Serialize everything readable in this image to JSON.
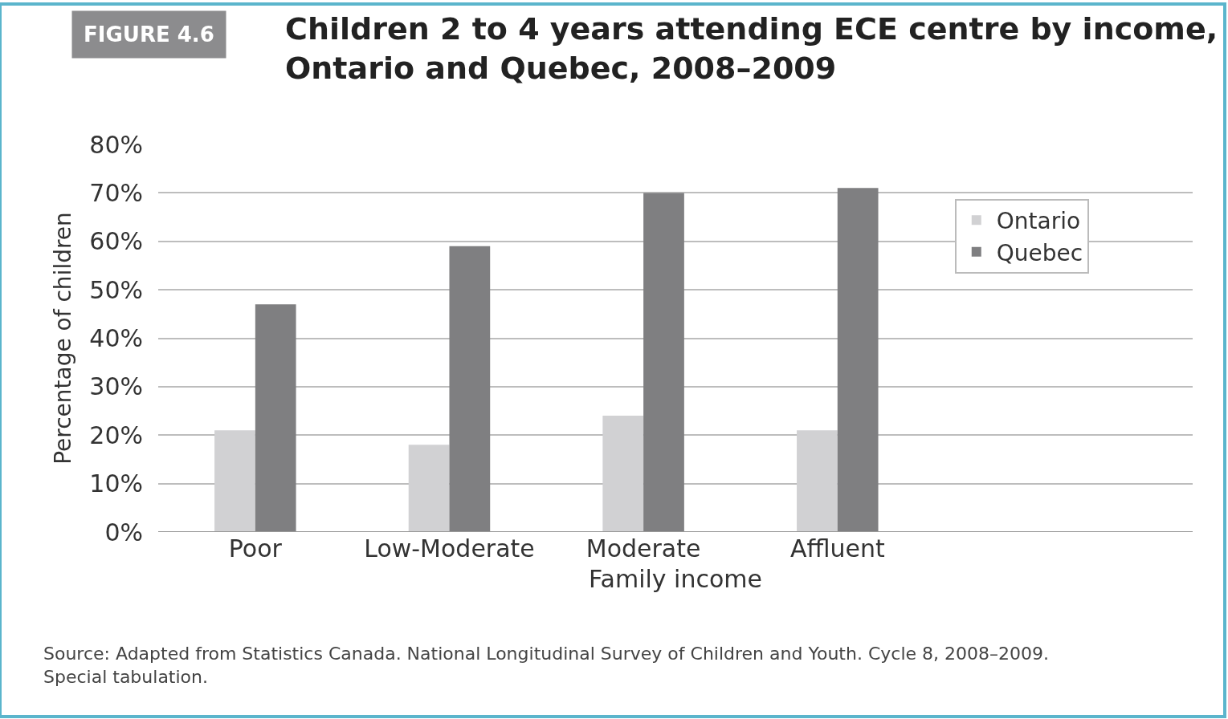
{
  "chart_data": {
    "type": "bar",
    "title": "Children 2 to 4 years attending ECE centre by income,\nOntario and Quebec, 2008–2009",
    "subtitle": "FIGURE 4.6",
    "categories": [
      "Poor",
      "Low-Moderate",
      "Moderate",
      "Affluent"
    ],
    "series": [
      {
        "name": "Ontario",
        "color": "#d1d1d3",
        "values": [
          21,
          18,
          24,
          21
        ]
      },
      {
        "name": "Quebec",
        "color": "#7f7f81",
        "values": [
          47,
          59,
          70,
          71
        ]
      }
    ],
    "xlabel": "Family income",
    "ylabel": "Percentage of children",
    "ylim": [
      0,
      80
    ],
    "yticks": [
      {
        "value": 0,
        "label": "0%"
      },
      {
        "value": 10,
        "label": "10%"
      },
      {
        "value": 20,
        "label": "20%"
      },
      {
        "value": 30,
        "label": "30%"
      },
      {
        "value": 40,
        "label": "40%"
      },
      {
        "value": 50,
        "label": "50%"
      },
      {
        "value": 60,
        "label": "60%"
      },
      {
        "value": 70,
        "label": "70%"
      },
      {
        "value": 80,
        "label": "80%"
      }
    ],
    "grid": "y",
    "legend": "top right",
    "annotations": [
      "Source: Adapted from Statistics Canada. National Longitudinal Survey of Children and Youth. Cycle 8, 2008–2009.\nSpecial tabulation."
    ]
  }
}
